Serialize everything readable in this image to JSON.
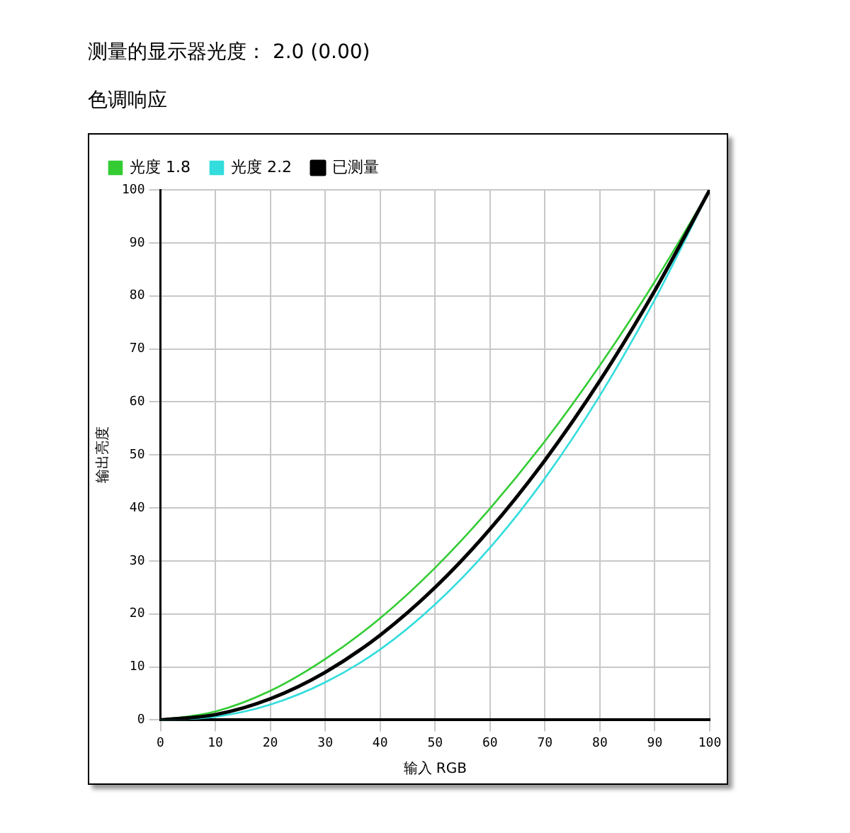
{
  "chart_data": {
    "type": "line",
    "title": "测量的显示器光度： 2.0 (0.00)",
    "subtitle": "色调响应",
    "xlabel": "输入 RGB",
    "ylabel": "输出亮度",
    "x": [
      0,
      10,
      20,
      30,
      40,
      50,
      60,
      70,
      80,
      90,
      100
    ],
    "series": [
      {
        "name": "光度 1.8",
        "color": "#33cc33",
        "values": [
          0,
          1.6,
          5.5,
          11.5,
          19.2,
          28.7,
          39.9,
          52.6,
          66.9,
          82.7,
          100
        ]
      },
      {
        "name": "光度 2.2",
        "color": "#33dddd",
        "values": [
          0,
          0.6,
          2.9,
          7.1,
          13.3,
          21.8,
          32.5,
          45.6,
          61.2,
          79.3,
          100
        ]
      },
      {
        "name": "已测量",
        "color": "#000000",
        "values": [
          0,
          1,
          4,
          9,
          16,
          25,
          36,
          49,
          64,
          81,
          100
        ]
      }
    ],
    "xlim": [
      0,
      100
    ],
    "xticks": [
      0,
      10,
      20,
      30,
      40,
      50,
      60,
      70,
      80,
      90,
      100
    ],
    "ylim": [
      0,
      100
    ],
    "yticks": [
      0,
      10,
      20,
      30,
      40,
      50,
      60,
      70,
      80,
      90,
      100
    ],
    "grid": true,
    "legend": "top left",
    "marker": "none",
    "line_style": "solid"
  }
}
